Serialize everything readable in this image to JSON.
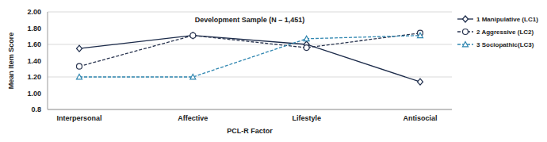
{
  "chart_data": {
    "type": "line",
    "annotations": [
      "Development Sample (N – 1,451)"
    ],
    "x_label": "PCL-R Factor",
    "y_label": "Mean Item Score",
    "categories": [
      "Interpersonal",
      "Affective",
      "Lifestyle",
      "Antisocial"
    ],
    "series": [
      {
        "name": "1 Manipulative (LC1)",
        "color": "#1c2b4a",
        "marker": "diamond",
        "line_style": "solid",
        "values": [
          1.55,
          1.71,
          1.6,
          1.14
        ]
      },
      {
        "name": "2 Aggressive (LC2)",
        "color": "#2a3550",
        "marker": "circle",
        "line_style": "dashed",
        "values": [
          1.33,
          1.71,
          1.56,
          1.74
        ]
      },
      {
        "name": "3 Sociopathic(LC3)",
        "color": "#2f86b0",
        "marker": "triangle",
        "line_style": "dashed",
        "values": [
          1.2,
          1.2,
          1.67,
          1.71
        ]
      }
    ],
    "ylim": [
      0.8,
      2
    ],
    "yticks": [
      0.8,
      {
        "value": 1,
        "label": "1.00"
      },
      {
        "value": 1.2,
        "label": "1.20"
      },
      {
        "value": 1.4,
        "label": "1.40"
      },
      {
        "value": 1.6,
        "label": "1.60"
      },
      {
        "value": 1.8,
        "label": "1.80"
      },
      {
        "value": 2,
        "label": "2.00"
      }
    ],
    "grid": true,
    "legend": "right"
  }
}
